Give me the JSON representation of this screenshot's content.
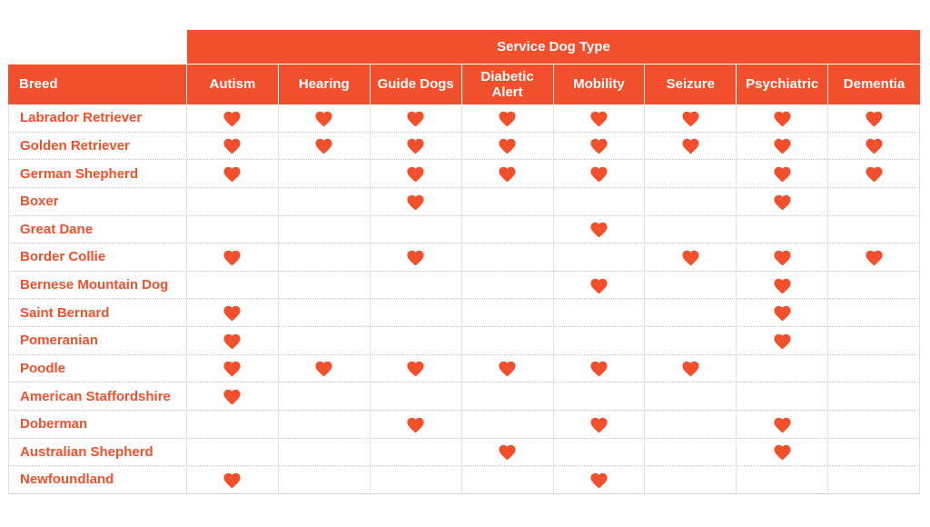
{
  "colors": {
    "accent": "#F2502C",
    "header_text": "#FFFFFF",
    "grid_vertical_line": "#E3E3E3",
    "row_divider": "#C9C9C9",
    "background": "#FFFFFF"
  },
  "chart_data": {
    "type": "table",
    "title": "Service Dog Type",
    "row_header": "Breed",
    "columns": [
      "Autism",
      "Hearing",
      "Guide Dogs",
      "Diabetic Alert",
      "Mobility",
      "Seizure",
      "Psychiatric",
      "Dementia"
    ],
    "marker": "heart",
    "rows": [
      {
        "breed": "Labrador Retriever",
        "values": [
          1,
          1,
          1,
          1,
          1,
          1,
          1,
          1
        ]
      },
      {
        "breed": "Golden Retriever",
        "values": [
          1,
          1,
          1,
          1,
          1,
          1,
          1,
          1
        ]
      },
      {
        "breed": "German Shepherd",
        "values": [
          1,
          0,
          1,
          1,
          1,
          0,
          1,
          1
        ]
      },
      {
        "breed": "Boxer",
        "values": [
          0,
          0,
          1,
          0,
          0,
          0,
          1,
          0
        ]
      },
      {
        "breed": "Great Dane",
        "values": [
          0,
          0,
          0,
          0,
          1,
          0,
          0,
          0
        ]
      },
      {
        "breed": "Border Collie",
        "values": [
          1,
          0,
          1,
          0,
          0,
          1,
          1,
          1
        ]
      },
      {
        "breed": "Bernese Mountain Dog",
        "values": [
          0,
          0,
          0,
          0,
          1,
          0,
          1,
          0
        ]
      },
      {
        "breed": "Saint Bernard",
        "values": [
          1,
          0,
          0,
          0,
          0,
          0,
          1,
          0
        ]
      },
      {
        "breed": "Pomeranian",
        "values": [
          1,
          0,
          0,
          0,
          0,
          0,
          1,
          0
        ]
      },
      {
        "breed": "Poodle",
        "values": [
          1,
          1,
          1,
          1,
          1,
          1,
          0,
          0
        ]
      },
      {
        "breed": "American Staffordshire",
        "values": [
          1,
          0,
          0,
          0,
          0,
          0,
          0,
          0
        ]
      },
      {
        "breed": "Doberman",
        "values": [
          0,
          0,
          1,
          0,
          1,
          0,
          1,
          0
        ]
      },
      {
        "breed": "Australian Shepherd",
        "values": [
          0,
          0,
          0,
          1,
          0,
          0,
          1,
          0
        ]
      },
      {
        "breed": "Newfoundland",
        "values": [
          1,
          0,
          0,
          0,
          1,
          0,
          0,
          0
        ]
      }
    ]
  }
}
